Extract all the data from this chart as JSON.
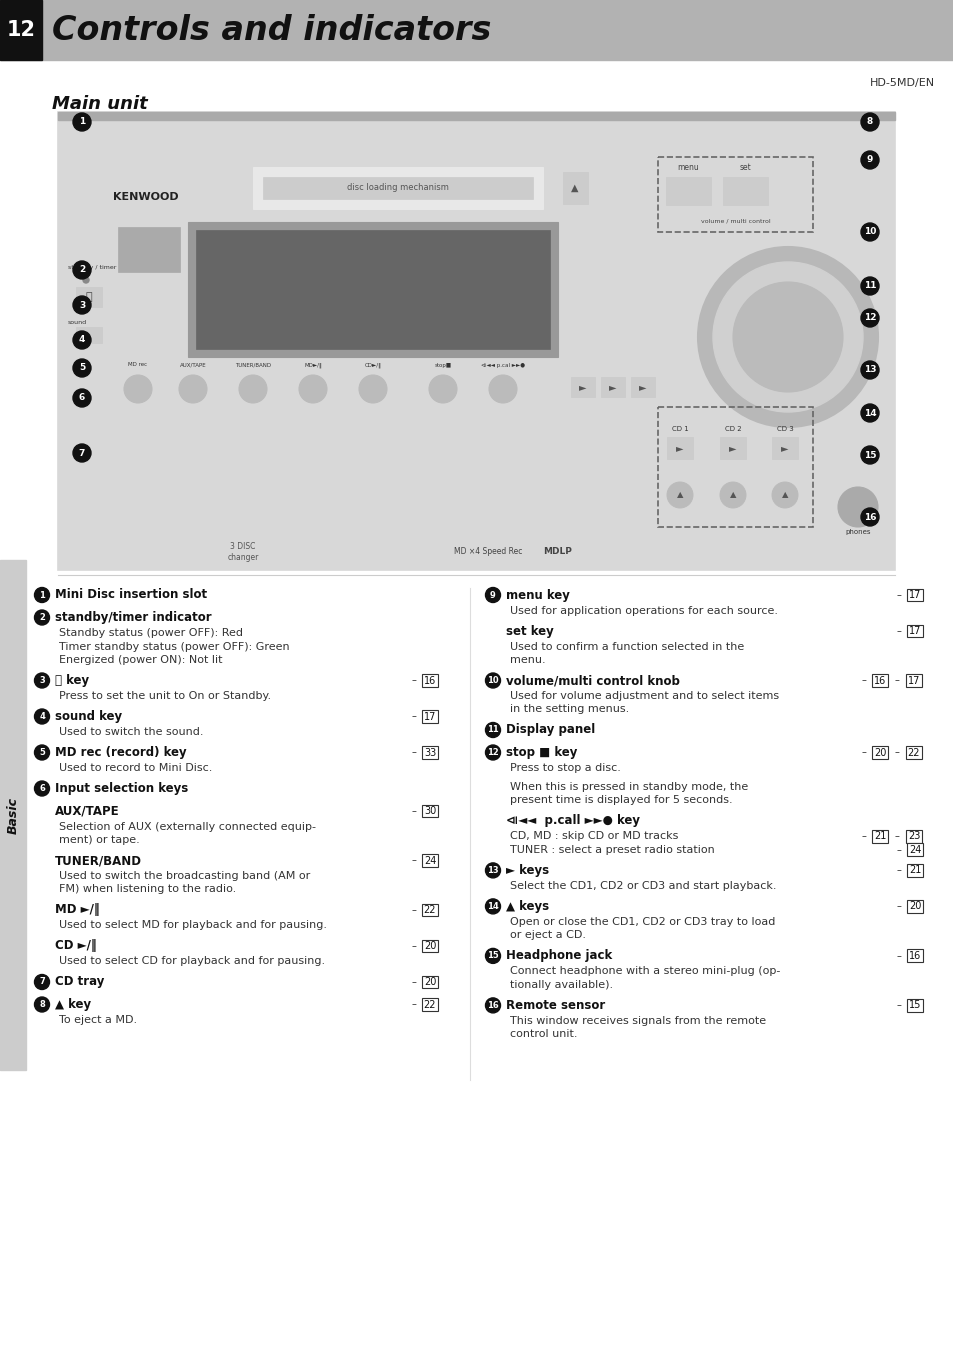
{
  "page_num": "12",
  "title": "Controls and indicators",
  "subtitle": "Main unit",
  "model": "HD-5MD/EN",
  "bg_color": "#ffffff",
  "header_bg": "#b0b0b0",
  "header_num_bg": "#111111",
  "sidebar_label": "Basic",
  "items_left": [
    {
      "num": "1",
      "bold": "Mini Disc insertion slot",
      "page_ref": "",
      "lines": []
    },
    {
      "num": "2",
      "bold": "standby/timer indicator",
      "page_ref": "",
      "lines": [
        "Standby status (power OFF): Red",
        "Timer standby status (power OFF): Green",
        "Energized (power ON): Not lit"
      ]
    },
    {
      "num": "3",
      "bold": "⏻ key",
      "page_ref": "16",
      "lines": [
        "Press to set the unit to On or Standby."
      ]
    },
    {
      "num": "4",
      "bold": "sound key",
      "page_ref": "17",
      "lines": [
        "Used to switch the sound."
      ]
    },
    {
      "num": "5",
      "bold": "MD rec (record) key",
      "page_ref": "33",
      "lines": [
        "Used to record to Mini Disc."
      ]
    },
    {
      "num": "6",
      "bold": "Input selection keys",
      "page_ref": "",
      "lines": []
    },
    {
      "num": "",
      "bold": "AUX/TAPE",
      "page_ref": "30",
      "lines": [
        "Selection of AUX (externally connected equip-",
        "ment) or tape."
      ]
    },
    {
      "num": "",
      "bold": "TUNER/BAND",
      "page_ref": "24",
      "lines": [
        "Used to switch the broadcasting band (AM or",
        "FM) when listening to the radio."
      ]
    },
    {
      "num": "",
      "bold": "MD ►/‖",
      "page_ref": "22",
      "lines": [
        "Used to select MD for playback and for pausing."
      ]
    },
    {
      "num": "",
      "bold": "CD ►/‖",
      "page_ref": "20",
      "lines": [
        "Used to select CD for playback and for pausing."
      ]
    },
    {
      "num": "7",
      "bold": "CD tray",
      "page_ref": "20",
      "lines": []
    },
    {
      "num": "8",
      "bold": "▲ key",
      "page_ref": "22",
      "lines": [
        "To eject a MD."
      ]
    }
  ],
  "items_right": [
    {
      "num": "9",
      "bold": "menu key",
      "page_ref": "17",
      "lines": [
        "Used for application operations for each source."
      ]
    },
    {
      "num": "",
      "bold": "set key",
      "page_ref": "17",
      "lines": [
        "Used to confirm a function selected in the",
        "menu."
      ]
    },
    {
      "num": "10",
      "bold": "volume/multi control knob",
      "page_ref": "16–17",
      "lines": [
        "Used for volume adjustment and to select items",
        "in the setting menus."
      ]
    },
    {
      "num": "11",
      "bold": "Display panel",
      "page_ref": "",
      "lines": []
    },
    {
      "num": "12",
      "bold": "stop ■ key",
      "page_ref": "20–22",
      "lines": [
        "Press to stop a disc.",
        "",
        "When this is pressed in standby mode, the",
        "present time is displayed for 5 seconds."
      ]
    },
    {
      "num": "",
      "bold": "⧏◄◄  p.call ►►● key",
      "page_ref": "",
      "lines": [
        "CD, MD : skip CD or MD tracks",
        "TUNER : select a preset radio station"
      ],
      "sub_refs": [
        [
          "21",
          "23"
        ],
        [
          "24"
        ]
      ]
    },
    {
      "num": "13",
      "bold": "► keys",
      "page_ref": "21",
      "lines": [
        "Select the CD1, CD2 or CD3 and start playback."
      ]
    },
    {
      "num": "14",
      "bold": "▲ keys",
      "page_ref": "20",
      "lines": [
        "Open or close the CD1, CD2 or CD3 tray to load",
        "or eject a CD."
      ]
    },
    {
      "num": "15",
      "bold": "Headphone jack",
      "page_ref": "16",
      "lines": [
        "Connect headphone with a stereo mini-plug (op-",
        "tionally available)."
      ]
    },
    {
      "num": "16",
      "bold": "Remote sensor",
      "page_ref": "15",
      "lines": [
        "This window receives signals from the remote",
        "control unit."
      ]
    }
  ]
}
